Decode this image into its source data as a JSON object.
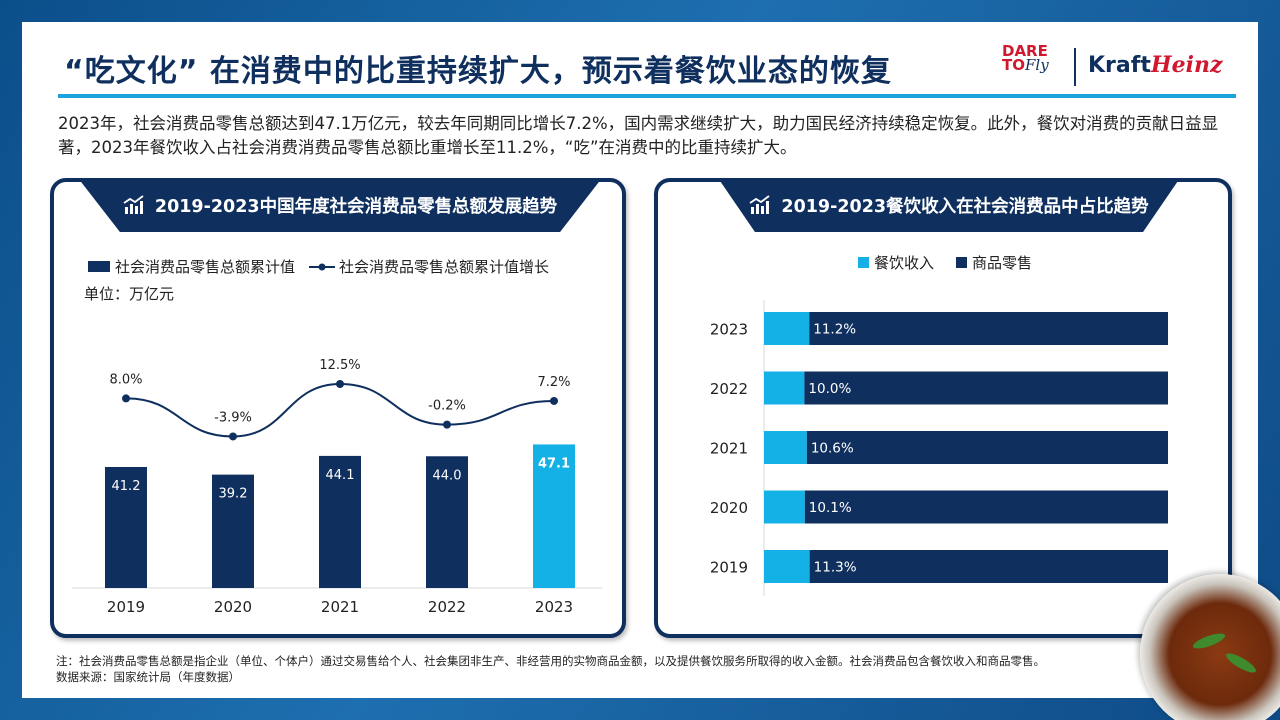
{
  "header": {
    "title": "“吃文化” 在消费中的比重持续扩大，预示着餐饮业态的恢复",
    "logo_dare": "DARE",
    "logo_to": "TO",
    "logo_fly": "Fly",
    "logo_kraft": "Kraft",
    "logo_heinz": "Heinz"
  },
  "intro": "2023年，社会消费品零售总额达到47.1万亿元，较去年同期同比增长7.2%，国内需求继续扩大，助力国民经济持续稳定恢复。此外，餐饮对消费的贡献日益显著，2023年餐饮收入占社会消费消费品零售总额比重增长至11.2%，“吃”在消费中的比重持续扩大。",
  "colors": {
    "navy": "#0f2f5e",
    "accent": "#1aa3dd",
    "dark_bar": "#0f2f5e",
    "highlight_bar": "#14b1e7"
  },
  "left_panel": {
    "title": "2019-2023中国年度社会消费品零售总额发展趋势",
    "icon": "chart-icon",
    "legend_bar": "社会消费品零售总额累计值",
    "legend_line": "社会消费品零售总额累计值增长",
    "unit": "单位：万亿元"
  },
  "right_panel": {
    "title": "2019-2023餐饮收入在社会消费品中占比趋势",
    "icon": "chart-icon",
    "legend_a": "餐饮收入",
    "legend_b": "商品零售"
  },
  "footnote": {
    "line1": "注：社会消费品零售总额是指企业（单位、个体户）通过交易售给个人、社会集团非生产、非经营用的实物商品金额，以及提供餐饮服务所取得的收入金额。社会消费品包含餐饮收入和商品零售。",
    "line2": "数据来源：国家统计局（年度数据）"
  },
  "chart_data": [
    {
      "type": "bar",
      "categories": [
        "2019",
        "2020",
        "2021",
        "2022",
        "2023"
      ],
      "series": [
        {
          "name": "社会消费品零售总额累计值",
          "type": "bar",
          "values": [
            41.2,
            39.2,
            44.1,
            44.0,
            47.1
          ],
          "labels": [
            "41.2",
            "39.2",
            "44.1",
            "44.0",
            "47.1"
          ]
        },
        {
          "name": "社会消费品零售总额累计值增长",
          "type": "line",
          "values": [
            8.0,
            -3.9,
            12.5,
            -0.2,
            7.2
          ],
          "labels": [
            "8.0%",
            "-3.9%",
            "12.5%",
            "-0.2%",
            "7.2%"
          ]
        }
      ],
      "highlight_category": "2023",
      "grid": false
    },
    {
      "type": "bar",
      "orientation": "horizontal",
      "stacked": true,
      "categories": [
        "2023",
        "2022",
        "2021",
        "2020",
        "2019"
      ],
      "series": [
        {
          "name": "餐饮收入",
          "values": [
            11.2,
            10.0,
            10.6,
            10.1,
            11.3
          ],
          "labels": [
            "11.2%",
            "10.0%",
            "10.6%",
            "10.1%",
            "11.3%"
          ]
        },
        {
          "name": "商品零售",
          "values": [
            88.8,
            90.0,
            89.4,
            89.9,
            88.7
          ]
        }
      ],
      "xlim": [
        0,
        100
      ],
      "grid": false
    }
  ]
}
